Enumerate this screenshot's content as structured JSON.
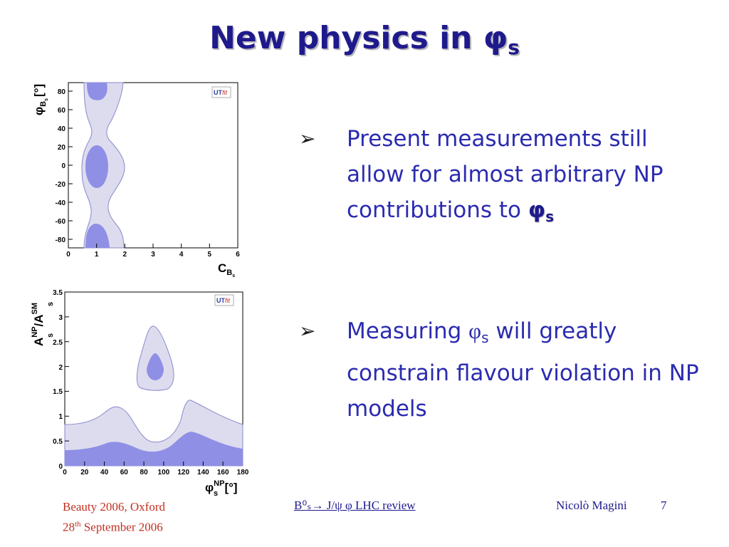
{
  "title": {
    "main": "New physics in ",
    "symbol": "φ",
    "sub": "s"
  },
  "bullets": [
    {
      "marker": "➢",
      "text": "Present measurements still allow for almost arbitrary NP contributions to ",
      "symbol": "φ",
      "sub": "s"
    },
    {
      "marker": "➢",
      "pre": "Measuring ",
      "symbol": "φ",
      "sub": "s",
      "post": " will greatly constrain flavour violation in NP models"
    }
  ],
  "plot1": {
    "logo": {
      "ut": "UT",
      "fit": "fit"
    },
    "ylabel": "φ",
    "ylabel_sub": "B",
    "ylabel_subsub": "s",
    "ylabel_unit": "[°]",
    "xlabel": "C",
    "xlabel_sub": "B",
    "xlabel_subsub": "s",
    "x_ticks": [
      "0",
      "1",
      "2",
      "3",
      "4",
      "5",
      "6"
    ],
    "y_ticks": [
      "80",
      "60",
      "40",
      "20",
      "0",
      "-20",
      "-40",
      "-60",
      "-80"
    ]
  },
  "plot2": {
    "logo": {
      "ut": "UT",
      "fit": "fit"
    },
    "ylabel": "A",
    "ylabel_sup1": "NP",
    "ylabel_sub1": "s",
    "ylabel_slash": "/A",
    "ylabel_sup2": "SM",
    "ylabel_sub2": "s",
    "xlabel": "φ",
    "xlabel_sup": "NP",
    "xlabel_sub": "s",
    "xlabel_unit": "[°]",
    "x_ticks": [
      "0",
      "20",
      "40",
      "60",
      "80",
      "100",
      "120",
      "140",
      "160",
      "180"
    ],
    "y_ticks": [
      "3.5",
      "3",
      "2.5",
      "2",
      "1.5",
      "1",
      "0.5",
      "0"
    ]
  },
  "colors": {
    "outer_region": "#dcdcee",
    "inner_region": "#8f8fe6",
    "edge": "#8888cc",
    "title": "#1f1a8c",
    "text": "#2b2bb0",
    "footer_red": "#c23020"
  },
  "footer": {
    "left_line1": "Beauty 2006, Oxford",
    "left_line2_pre": "28",
    "left_line2_sup": "th",
    "left_line2_post": " September 2006",
    "center": "B⁰ₛ→ J/ψ φ LHC review",
    "right": "Nicolò Magini",
    "page": "7"
  }
}
